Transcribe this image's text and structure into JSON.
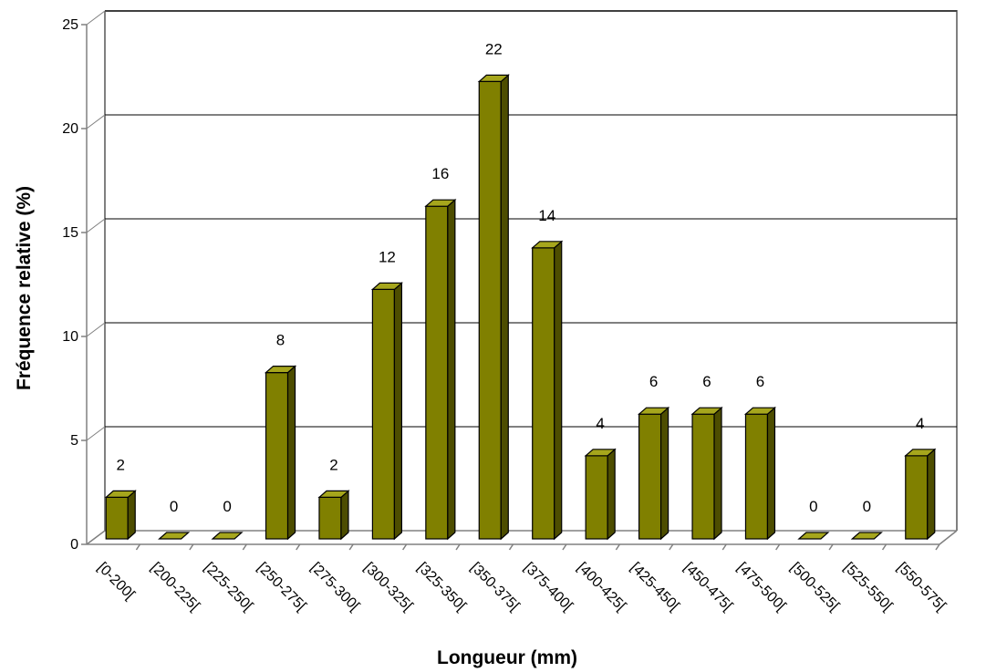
{
  "chart_data": {
    "type": "bar",
    "title": "",
    "xlabel": "Longueur (mm)",
    "ylabel": "Fréquence relative (%)",
    "ylim": [
      0,
      25
    ],
    "yticks": [
      "0",
      "5",
      "10",
      "15",
      "20",
      "25"
    ],
    "categories": [
      "[0-200[",
      "[200-225[",
      "[225-250[",
      "[250-275[",
      "[275-300[",
      "[300-325[",
      "[325-350[",
      "[350-375[",
      "[375-400[",
      "[400-425[",
      "[425-450[",
      "[450-475[",
      "[475-500[",
      "[500-525[",
      "[525-550[",
      "[550-575["
    ],
    "values": [
      2,
      0,
      0,
      8,
      2,
      12,
      16,
      22,
      14,
      4,
      6,
      6,
      6,
      0,
      0,
      4
    ],
    "data_labels": [
      "2",
      "0",
      "0",
      "8",
      "2",
      "12",
      "16",
      "22",
      "14",
      "4",
      "6",
      "6",
      "6",
      "0",
      "0",
      "4"
    ],
    "grid": true,
    "style": "3d-bar",
    "colors": {
      "bar_front": "#808000",
      "bar_side": "#4d4d00",
      "bar_top": "#a6a61c",
      "grid": "#000000",
      "walls": "#808080"
    }
  }
}
